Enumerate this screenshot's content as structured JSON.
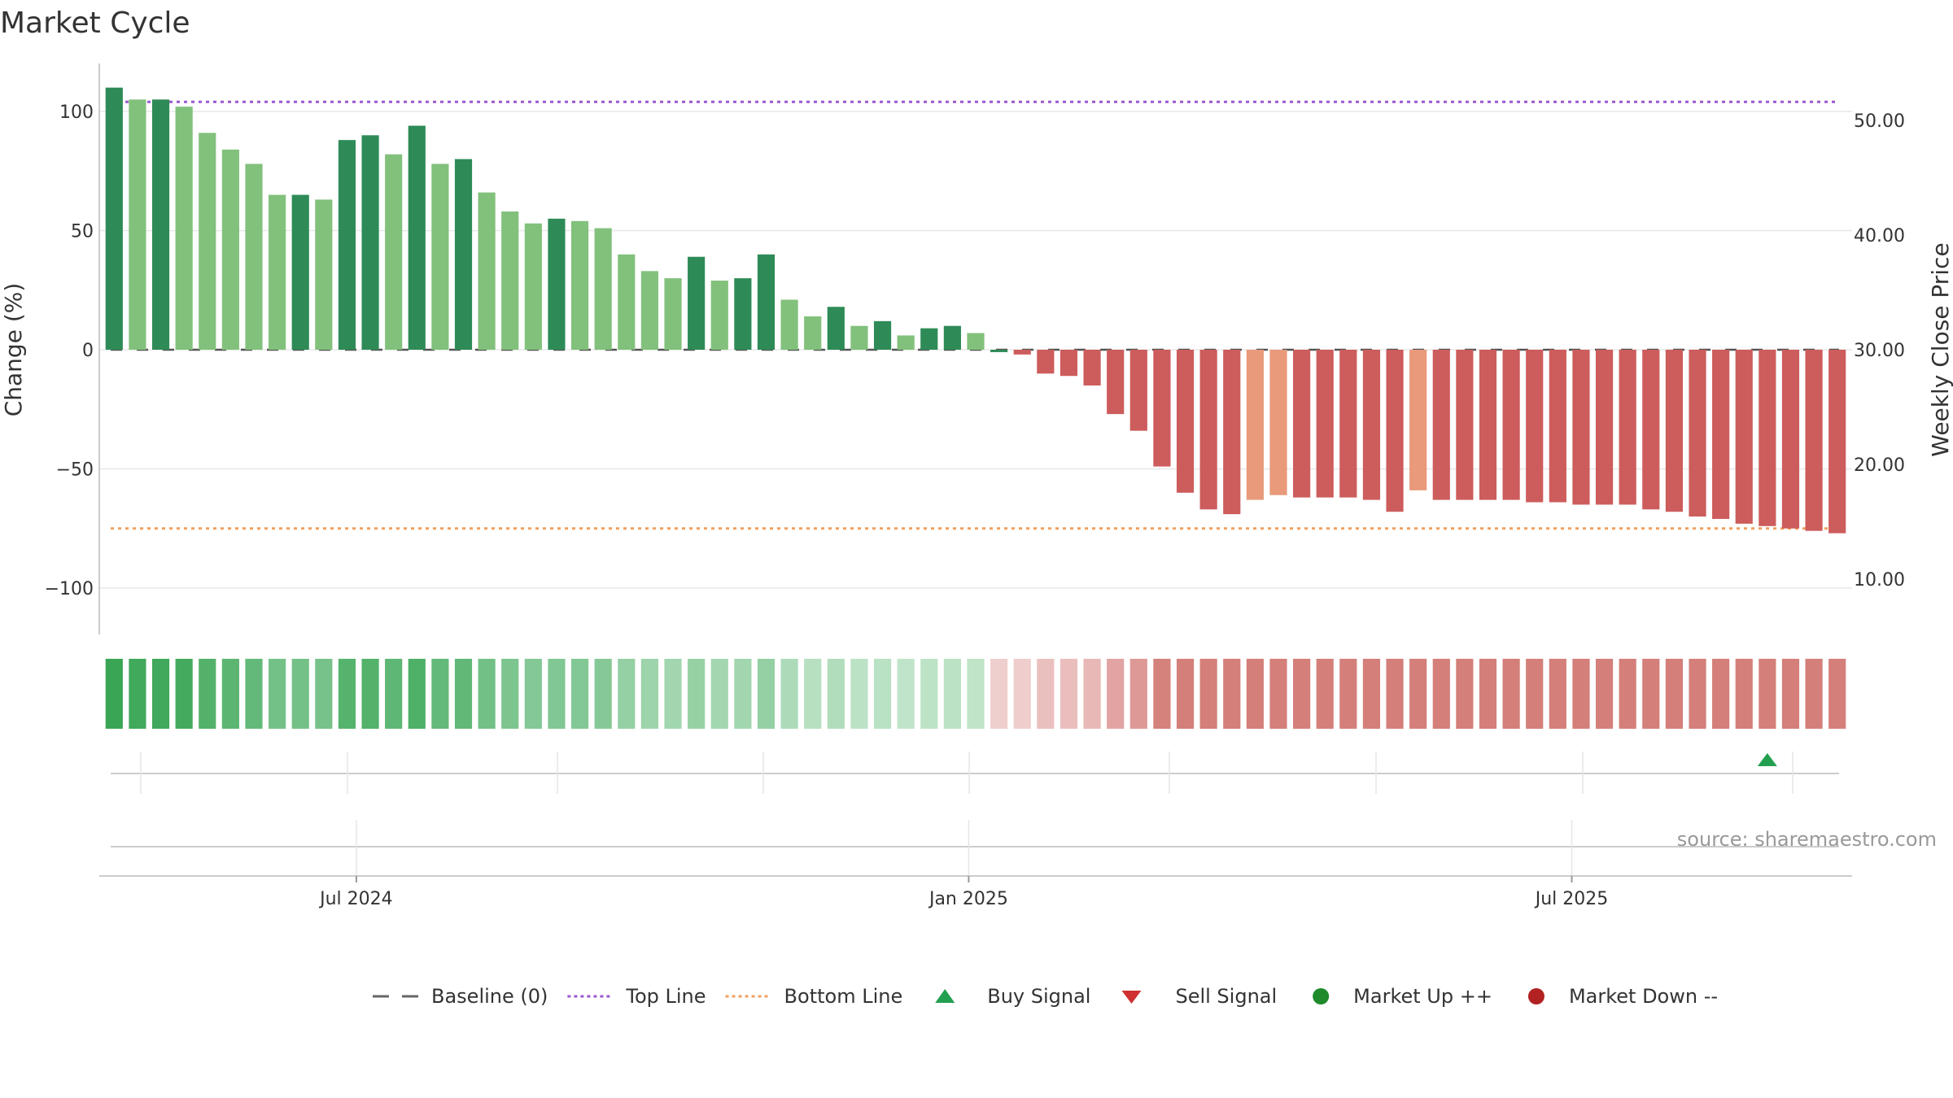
{
  "chart_data": {
    "type": "bar",
    "title": "Market Cycle",
    "ylabel_left": "Change (%)",
    "ylabel_right": "Weekly Close Price",
    "ylim_left": [
      -120,
      120
    ],
    "ylim_right": [
      5,
      55
    ],
    "left_ticks": [
      {
        "value": 100,
        "label": "100"
      },
      {
        "value": 50,
        "label": "50"
      },
      {
        "value": 0,
        "label": "0"
      },
      {
        "value": -50,
        "label": "−50"
      },
      {
        "value": -100,
        "label": "−100"
      }
    ],
    "right_ticks": [
      {
        "value": 50,
        "label": "50.00"
      },
      {
        "value": 40,
        "label": "40.00"
      },
      {
        "value": 30,
        "label": "30.00"
      },
      {
        "value": 20,
        "label": "20.00"
      },
      {
        "value": 10,
        "label": "10.00"
      }
    ],
    "x_ticks": [
      {
        "index": 10.4,
        "label": "Jul 2024"
      },
      {
        "index": 36.7,
        "label": "Jan 2025"
      },
      {
        "index": 62.6,
        "label": "Jul 2025"
      }
    ],
    "top_line": 104,
    "bottom_line": -75,
    "baseline": 0,
    "values": [
      110,
      105,
      105,
      102,
      91,
      84,
      78,
      65,
      65,
      63,
      88,
      90,
      82,
      94,
      78,
      80,
      66,
      58,
      53,
      55,
      54,
      51,
      40,
      33,
      30,
      39,
      29,
      30,
      40,
      21,
      14,
      18,
      10,
      12,
      6,
      9,
      10,
      7,
      -1,
      -2,
      -10,
      -11,
      -15,
      -27,
      -34,
      -49,
      -60,
      -67,
      -69,
      -63,
      -61,
      -62,
      -62,
      -62,
      -63,
      -68,
      -59,
      -63,
      -63,
      -63,
      -63,
      -64,
      -64,
      -65,
      -65,
      -65,
      -67,
      -68,
      -70,
      -71,
      -73,
      -74,
      -75,
      -76,
      -77
    ],
    "bar_shades": [
      "dark",
      "light",
      "dark",
      "light",
      "light",
      "light",
      "light",
      "light",
      "dark",
      "light",
      "dark",
      "dark",
      "light",
      "dark",
      "light",
      "dark",
      "light",
      "light",
      "light",
      "dark",
      "light",
      "light",
      "light",
      "light",
      "light",
      "dark",
      "light",
      "dark",
      "dark",
      "light",
      "light",
      "dark",
      "light",
      "dark",
      "light",
      "dark",
      "dark",
      "light",
      "dark",
      "red",
      "red",
      "red",
      "red",
      "red",
      "red",
      "red",
      "red",
      "red",
      "red",
      "salmon",
      "salmon",
      "red",
      "red",
      "red",
      "red",
      "red",
      "salmon",
      "red",
      "red",
      "red",
      "red",
      "red",
      "red",
      "red",
      "red",
      "red",
      "red",
      "red",
      "red",
      "red",
      "red",
      "red",
      "red",
      "red",
      "red"
    ],
    "buy_signals": [
      71
    ],
    "sell_signals": [],
    "source": "source: sharemaestro.com",
    "legend": [
      {
        "label": "Baseline (0)",
        "marker": "dash",
        "color": "#666666"
      },
      {
        "label": "Top Line",
        "marker": "dotted",
        "color": "#9b59d0"
      },
      {
        "label": "Bottom Line",
        "marker": "dotted",
        "color": "#f0a060"
      },
      {
        "label": "Buy Signal",
        "marker": "triangle-up",
        "color": "#22a050"
      },
      {
        "label": "Sell Signal",
        "marker": "triangle-down",
        "color": "#d03030"
      },
      {
        "label": "Market Up ++",
        "marker": "circle",
        "color": "#1f8a2a"
      },
      {
        "label": "Market Down --",
        "marker": "circle",
        "color": "#b22222"
      }
    ],
    "colors": {
      "dark_green": "#2e8b57",
      "light_green": "#82c17c",
      "red": "#cd5c5c",
      "salmon": "#e89a7a",
      "top_line": "#9b59d0",
      "bottom_line": "#f0a060"
    }
  }
}
